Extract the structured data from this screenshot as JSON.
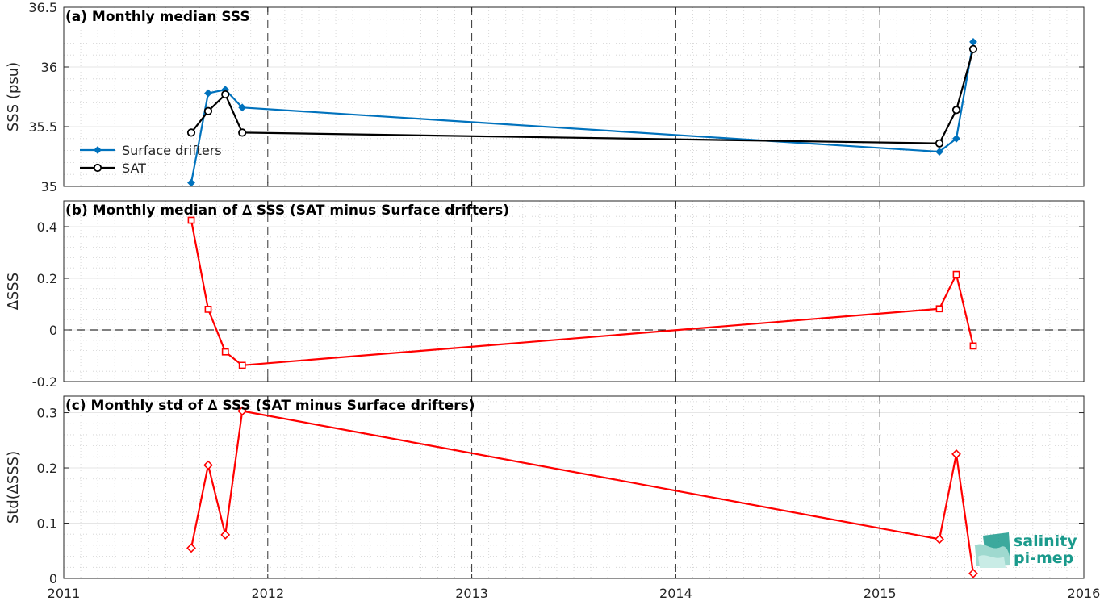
{
  "chart_data": [
    {
      "type": "line",
      "title": "(a) Monthly median SSS",
      "ylabel": "SSS (psu)",
      "ylim": [
        35,
        36.5
      ],
      "yticks": [
        "35",
        "35.5",
        "36",
        "36.5"
      ],
      "grid": true,
      "legend_position": "left",
      "series": [
        {
          "name": "Surface drifters",
          "color": "#0072bd",
          "marker": "diamond-filled",
          "x": [
            2011.625,
            2011.708,
            2011.792,
            2011.875,
            2015.292,
            2015.375,
            2015.458
          ],
          "values": [
            35.03,
            35.78,
            35.81,
            35.66,
            35.29,
            35.4,
            36.21
          ]
        },
        {
          "name": "SAT",
          "color": "#000000",
          "marker": "circle",
          "x": [
            2011.625,
            2011.708,
            2011.792,
            2011.875,
            2015.292,
            2015.375,
            2015.458
          ],
          "values": [
            35.45,
            35.63,
            35.77,
            35.45,
            35.36,
            35.64,
            36.15
          ]
        }
      ]
    },
    {
      "type": "line",
      "title": "(b) Monthly median of ∆ SSS (SAT minus Surface drifters)",
      "ylabel": "∆SSS",
      "ylim": [
        -0.2,
        0.5
      ],
      "yticks": [
        "-0.2",
        "0",
        "0.2",
        "0.4"
      ],
      "grid": true,
      "reference_line": 0,
      "series": [
        {
          "color": "#ff0000",
          "marker": "square",
          "x": [
            2011.625,
            2011.708,
            2011.792,
            2011.875,
            2015.292,
            2015.375,
            2015.458
          ],
          "values": [
            0.425,
            0.08,
            -0.085,
            -0.137,
            0.082,
            0.215,
            -0.062
          ]
        }
      ]
    },
    {
      "type": "line",
      "title": "(c) Monthly std of ∆ SSS (SAT minus Surface drifters)",
      "ylabel": "Std(∆SSS)",
      "ylim": [
        0,
        0.33
      ],
      "yticks": [
        "0",
        "0.1",
        "0.2",
        "0.3"
      ],
      "grid": true,
      "series": [
        {
          "color": "#ff0000",
          "marker": "diamond",
          "x": [
            2011.625,
            2011.708,
            2011.792,
            2011.875,
            2015.292,
            2015.375,
            2015.458
          ],
          "values": [
            0.055,
            0.205,
            0.079,
            0.303,
            0.071,
            0.225,
            0.009
          ]
        }
      ]
    }
  ],
  "xaxis": {
    "xlim": [
      2011,
      2016
    ],
    "ticks": [
      2011,
      2012,
      2013,
      2014,
      2015,
      2016
    ],
    "tick_labels": [
      "2011",
      "2012",
      "2013",
      "2014",
      "2015",
      "2016"
    ]
  },
  "logo": {
    "line1": "salinity",
    "line2": "pi-mep",
    "color": "#1a9a8c"
  }
}
